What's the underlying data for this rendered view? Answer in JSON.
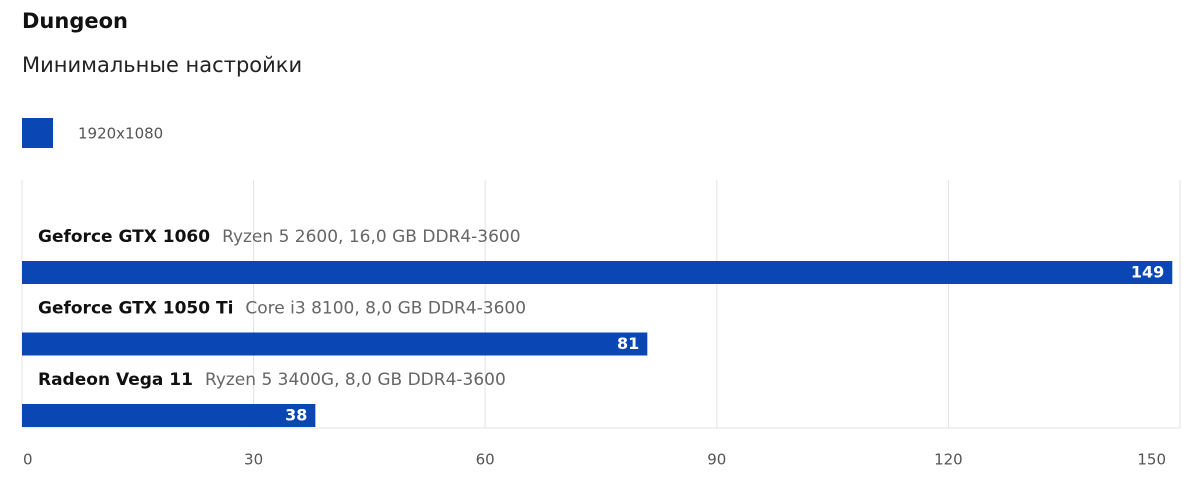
{
  "chart_data": {
    "type": "hbar",
    "title": "Dungeon",
    "subtitle": "Минимальные настройки",
    "categories": [
      "Geforce GTX 1060",
      "Geforce GTX 1050 Ti",
      "Radeon Vega 11"
    ],
    "details": [
      "Ryzen 5 2600, 16,0 GB DDR4-3600",
      "Core i3 8100, 8,0 GB DDR4-3600",
      "Ryzen 5 3400G, 8,0 GB DDR4-3600"
    ],
    "series": [
      {
        "name": "1920x1080",
        "color": "#0a47b5",
        "values": [
          149,
          81,
          38
        ]
      }
    ],
    "xlim": [
      0,
      150
    ],
    "xticks": [
      0,
      30,
      60,
      90,
      120,
      150
    ],
    "grid": true
  }
}
